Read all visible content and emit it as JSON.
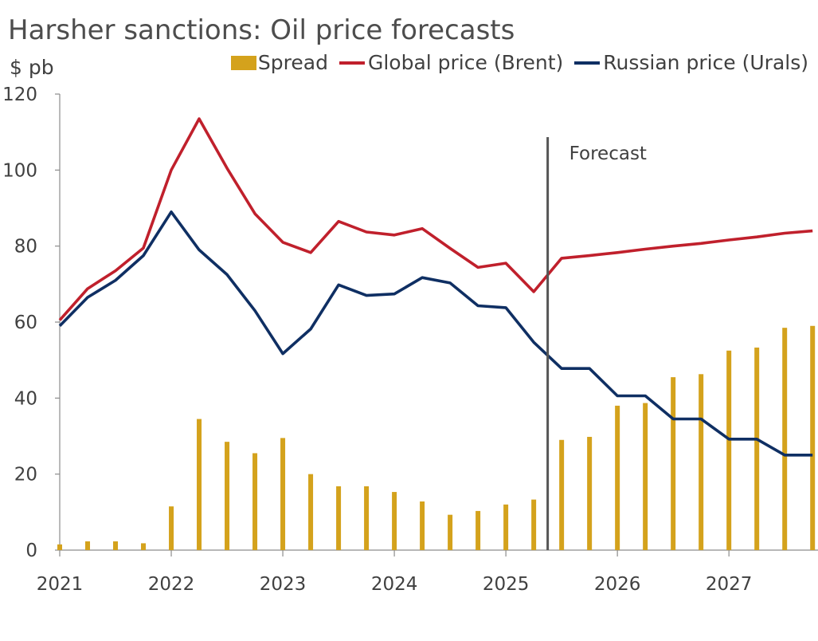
{
  "chart_data": {
    "type": "bar+line",
    "title": "Harsher sanctions: Oil price forecasts",
    "ylabel": "$ pb",
    "ylim": [
      0,
      120
    ],
    "yticks": [
      0,
      20,
      40,
      60,
      80,
      100,
      120
    ],
    "xlim": [
      2021,
      2027.75
    ],
    "xticks": [
      "2021",
      "2022",
      "2023",
      "2024",
      "2025",
      "2026",
      "2027"
    ],
    "forecast_label": "Forecast",
    "forecast_start": 2025.375,
    "colors": {
      "spread": "#D4A21C",
      "brent": "#C0202C",
      "urals": "#0F2F63",
      "forecast_line": "#555555"
    },
    "legend": {
      "placement": "top-right"
    },
    "series": [
      {
        "name": "Spread",
        "kind": "bar",
        "x": [
          2021.0,
          2021.25,
          2021.5,
          2021.75,
          2022.0,
          2022.25,
          2022.5,
          2022.75,
          2023.0,
          2023.25,
          2023.5,
          2023.75,
          2024.0,
          2024.25,
          2024.5,
          2024.75,
          2025.0,
          2025.25,
          2025.5,
          2025.75,
          2026.0,
          2026.25,
          2026.5,
          2026.75,
          2027.0,
          2027.25,
          2027.5,
          2027.75
        ],
        "values": [
          1.5,
          2.3,
          2.3,
          1.8,
          11.5,
          34.5,
          28.5,
          25.5,
          29.5,
          20,
          16.8,
          16.8,
          15.3,
          12.8,
          9.3,
          10.3,
          12,
          13.3,
          29,
          29.8,
          38,
          38.7,
          45.5,
          46.3,
          52.5,
          53.3,
          58.5,
          59
        ]
      },
      {
        "name": "Global price (Brent)",
        "kind": "line",
        "x": [
          2021.0,
          2021.25,
          2021.5,
          2021.75,
          2022.0,
          2022.25,
          2022.5,
          2022.75,
          2023.0,
          2023.25,
          2023.5,
          2023.75,
          2024.0,
          2024.25,
          2024.5,
          2024.75,
          2025.0,
          2025.25,
          2025.5,
          2025.75,
          2026.0,
          2026.25,
          2026.5,
          2026.75,
          2027.0,
          2027.25,
          2027.5,
          2027.75
        ],
        "values": [
          60.5,
          68.8,
          73.5,
          79.5,
          100,
          113.5,
          100.5,
          88.5,
          81,
          78.3,
          86.5,
          83.7,
          82.9,
          84.6,
          79.4,
          74.4,
          75.5,
          68,
          76.8,
          77.5,
          78.3,
          79.2,
          80,
          80.7,
          81.6,
          82.4,
          83.4,
          84
        ]
      },
      {
        "name": "Russian price (Urals)",
        "kind": "line",
        "x": [
          2021.0,
          2021.25,
          2021.5,
          2021.75,
          2022.0,
          2022.25,
          2022.5,
          2022.75,
          2023.0,
          2023.25,
          2023.5,
          2023.75,
          2024.0,
          2024.25,
          2024.5,
          2024.75,
          2025.0,
          2025.25,
          2025.5,
          2025.75,
          2026.0,
          2026.25,
          2026.5,
          2026.75,
          2027.0,
          2027.25,
          2027.5,
          2027.75
        ],
        "values": [
          59,
          66.5,
          71,
          77.5,
          89,
          79,
          72.5,
          63,
          51.7,
          58.2,
          69.8,
          67,
          67.4,
          71.7,
          70.3,
          64.3,
          63.8,
          54.7,
          47.8,
          47.8,
          40.6,
          40.6,
          34.5,
          34.5,
          29.2,
          29.2,
          25,
          25
        ]
      }
    ]
  }
}
